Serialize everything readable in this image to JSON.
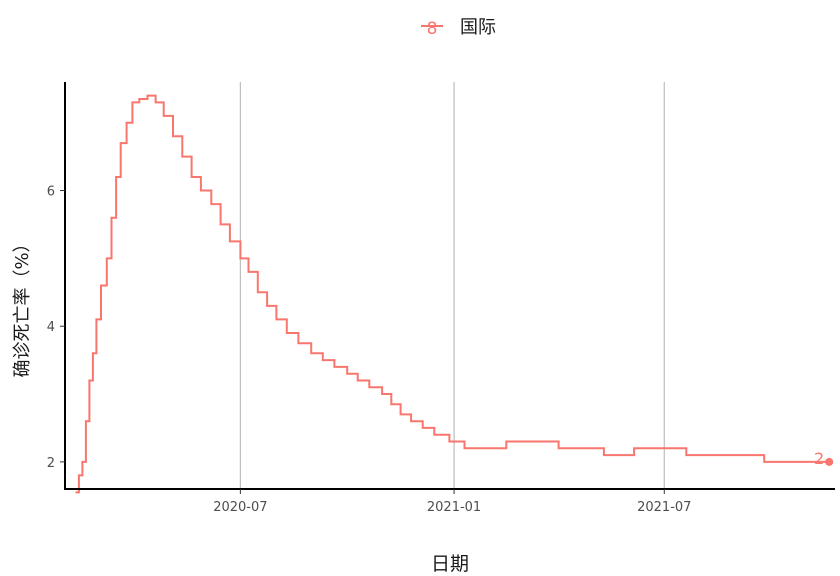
{
  "chart_data": {
    "type": "line",
    "title": "",
    "xlabel": "日期",
    "ylabel": "确诊死亡率（%）",
    "legend": {
      "position": "top",
      "entries": [
        {
          "name": "国际",
          "symbol": "8"
        }
      ]
    },
    "x_axis": {
      "type": "date",
      "range": [
        "2020-02-01",
        "2021-11-25"
      ],
      "ticks": [
        "2020-07",
        "2021-01",
        "2021-07"
      ],
      "grid": "major vertical only"
    },
    "y_axis": {
      "range": [
        1.6,
        7.6
      ],
      "ticks": [
        "2",
        "4",
        "6"
      ],
      "grid": false
    },
    "series": [
      {
        "name": "国际",
        "color": "#f8766d",
        "step": true,
        "points": [
          [
            "2020-02-10",
            1.55
          ],
          [
            "2020-02-13",
            1.8
          ],
          [
            "2020-02-16",
            2.0
          ],
          [
            "2020-02-19",
            2.6
          ],
          [
            "2020-02-22",
            3.2
          ],
          [
            "2020-02-25",
            3.6
          ],
          [
            "2020-02-28",
            4.1
          ],
          [
            "2020-03-03",
            4.6
          ],
          [
            "2020-03-08",
            5.0
          ],
          [
            "2020-03-12",
            5.6
          ],
          [
            "2020-03-16",
            6.2
          ],
          [
            "2020-03-20",
            6.7
          ],
          [
            "2020-03-25",
            7.0
          ],
          [
            "2020-03-30",
            7.3
          ],
          [
            "2020-04-05",
            7.35
          ],
          [
            "2020-04-12",
            7.4
          ],
          [
            "2020-04-19",
            7.3
          ],
          [
            "2020-04-26",
            7.1
          ],
          [
            "2020-05-04",
            6.8
          ],
          [
            "2020-05-12",
            6.5
          ],
          [
            "2020-05-20",
            6.2
          ],
          [
            "2020-05-28",
            6.0
          ],
          [
            "2020-06-06",
            5.8
          ],
          [
            "2020-06-14",
            5.5
          ],
          [
            "2020-06-22",
            5.25
          ],
          [
            "2020-07-01",
            5.0
          ],
          [
            "2020-07-08",
            4.8
          ],
          [
            "2020-07-16",
            4.5
          ],
          [
            "2020-07-24",
            4.3
          ],
          [
            "2020-08-01",
            4.1
          ],
          [
            "2020-08-10",
            3.9
          ],
          [
            "2020-08-20",
            3.75
          ],
          [
            "2020-08-31",
            3.6
          ],
          [
            "2020-09-10",
            3.5
          ],
          [
            "2020-09-20",
            3.4
          ],
          [
            "2020-10-01",
            3.3
          ],
          [
            "2020-10-10",
            3.2
          ],
          [
            "2020-10-20",
            3.1
          ],
          [
            "2020-10-31",
            3.0
          ],
          [
            "2020-11-08",
            2.85
          ],
          [
            "2020-11-16",
            2.7
          ],
          [
            "2020-11-25",
            2.6
          ],
          [
            "2020-12-05",
            2.5
          ],
          [
            "2020-12-15",
            2.4
          ],
          [
            "2020-12-28",
            2.3
          ],
          [
            "2021-01-10",
            2.2
          ],
          [
            "2021-02-15",
            2.3
          ],
          [
            "2021-04-01",
            2.2
          ],
          [
            "2021-05-10",
            2.1
          ],
          [
            "2021-06-05",
            2.2
          ],
          [
            "2021-07-20",
            2.1
          ],
          [
            "2021-09-25",
            2.0
          ],
          [
            "2021-11-20",
            2.0
          ]
        ],
        "end_label": "2"
      }
    ]
  }
}
